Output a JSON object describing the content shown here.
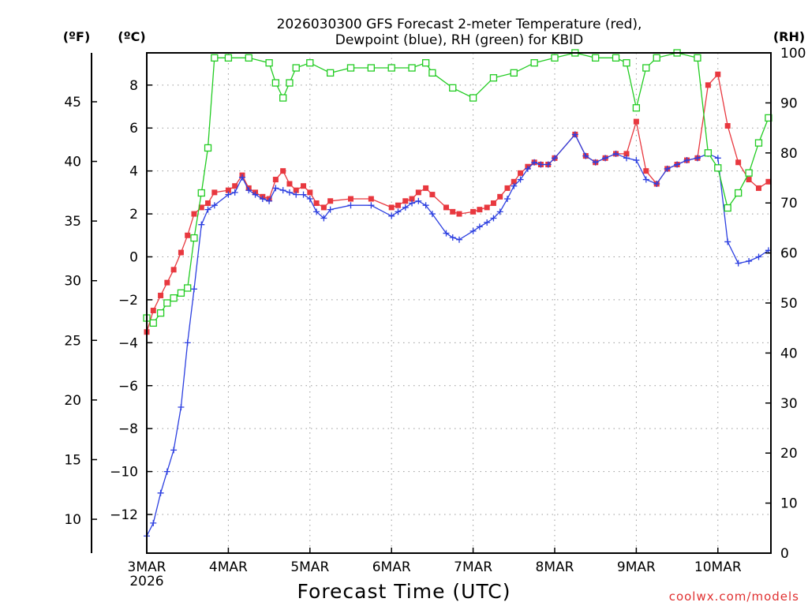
{
  "chart_data": {
    "type": "line",
    "title_line1": "2026030300 GFS Forecast 2-meter Temperature (red),",
    "title_line2": "Dewpoint (blue), RH (green) for KBID",
    "xlabel": "Forecast Time (UTC)",
    "credit": "coolwx.com/models",
    "units": {
      "fahrenheit": "(ºF)",
      "celsius": "(ºC)",
      "rh": "(RH)"
    },
    "x_range_days": [
      0,
      7.65
    ],
    "x_ticks": [
      {
        "day": 0,
        "label": "3MAR",
        "sub": "2026"
      },
      {
        "day": 1,
        "label": "4MAR"
      },
      {
        "day": 2,
        "label": "5MAR"
      },
      {
        "day": 3,
        "label": "6MAR"
      },
      {
        "day": 4,
        "label": "7MAR"
      },
      {
        "day": 5,
        "label": "8MAR"
      },
      {
        "day": 6,
        "label": "9MAR"
      },
      {
        "day": 7,
        "label": "10MAR"
      }
    ],
    "y_celsius": {
      "range": [
        -13.8,
        9.5
      ],
      "ticks": [
        -12,
        -10,
        -8,
        -6,
        -4,
        -2,
        0,
        2,
        4,
        6,
        8
      ]
    },
    "y_fahrenheit": {
      "ticks": [
        10,
        15,
        20,
        25,
        30,
        35,
        40,
        45
      ]
    },
    "y_rh": {
      "range": [
        0,
        100
      ],
      "ticks": [
        0,
        10,
        20,
        30,
        40,
        50,
        60,
        70,
        80,
        90,
        100
      ]
    },
    "colors": {
      "temperature": "#e8383f",
      "dewpoint": "#2c3fe0",
      "rh": "#22cc22",
      "grid": "#999999"
    },
    "series": [
      {
        "name": "Temperature (red)",
        "unit": "C",
        "marker": "square-filled",
        "days": [
          0,
          0.08,
          0.17,
          0.25,
          0.33,
          0.42,
          0.5,
          0.58,
          0.67,
          0.75,
          0.83,
          1,
          1.08,
          1.17,
          1.25,
          1.33,
          1.42,
          1.5,
          1.58,
          1.67,
          1.75,
          1.83,
          1.92,
          2,
          2.08,
          2.17,
          2.25,
          2.5,
          2.75,
          3,
          3.08,
          3.17,
          3.25,
          3.33,
          3.42,
          3.5,
          3.67,
          3.75,
          3.83,
          4,
          4.08,
          4.17,
          4.25,
          4.33,
          4.42,
          4.5,
          4.58,
          4.67,
          4.75,
          4.83,
          4.92,
          5,
          5.25,
          5.38,
          5.5,
          5.62,
          5.75,
          5.88,
          6,
          6.12,
          6.25,
          6.38,
          6.5,
          6.62,
          6.75,
          6.88,
          7,
          7.12,
          7.25,
          7.38,
          7.5,
          7.62
        ],
        "values": [
          -3.5,
          -2.5,
          -1.8,
          -1.2,
          -0.6,
          0.2,
          1.0,
          2.0,
          2.3,
          2.5,
          3.0,
          3.1,
          3.3,
          3.8,
          3.2,
          3.0,
          2.8,
          2.7,
          3.6,
          4.0,
          3.4,
          3.1,
          3.3,
          3.0,
          2.5,
          2.3,
          2.6,
          2.7,
          2.7,
          2.3,
          2.4,
          2.6,
          2.7,
          3.0,
          3.2,
          2.9,
          2.3,
          2.1,
          2.0,
          2.1,
          2.2,
          2.3,
          2.5,
          2.8,
          3.2,
          3.5,
          3.9,
          4.2,
          4.4,
          4.3,
          4.3,
          4.6,
          5.7,
          4.7,
          4.4,
          4.6,
          4.8,
          4.8,
          6.3,
          4.0,
          3.4,
          4.1,
          4.3,
          4.5,
          4.6,
          8.0,
          8.5,
          6.1,
          4.4,
          3.6,
          3.2,
          3.5
        ]
      },
      {
        "name": "Dewpoint (blue)",
        "unit": "C",
        "marker": "plus",
        "days": [
          0,
          0.08,
          0.17,
          0.25,
          0.33,
          0.42,
          0.5,
          0.58,
          0.67,
          0.75,
          0.83,
          1,
          1.08,
          1.17,
          1.25,
          1.33,
          1.42,
          1.5,
          1.58,
          1.67,
          1.75,
          1.83,
          1.92,
          2,
          2.08,
          2.17,
          2.25,
          2.5,
          2.75,
          3,
          3.08,
          3.17,
          3.25,
          3.33,
          3.42,
          3.5,
          3.67,
          3.75,
          3.83,
          4,
          4.08,
          4.17,
          4.25,
          4.33,
          4.42,
          4.5,
          4.58,
          4.67,
          4.75,
          4.83,
          4.92,
          5,
          5.25,
          5.38,
          5.5,
          5.62,
          5.75,
          5.88,
          6,
          6.12,
          6.25,
          6.38,
          6.5,
          6.62,
          6.75,
          6.88,
          7,
          7.12,
          7.25,
          7.38,
          7.5,
          7.62
        ],
        "values": [
          -13.0,
          -12.4,
          -11.0,
          -10.0,
          -9.0,
          -7.0,
          -4.0,
          -1.5,
          1.5,
          2.2,
          2.4,
          2.9,
          3.0,
          3.7,
          3.1,
          2.9,
          2.7,
          2.6,
          3.2,
          3.1,
          3.0,
          2.9,
          2.9,
          2.7,
          2.1,
          1.8,
          2.2,
          2.4,
          2.4,
          1.9,
          2.1,
          2.3,
          2.5,
          2.6,
          2.4,
          2.0,
          1.1,
          0.9,
          0.8,
          1.2,
          1.4,
          1.6,
          1.8,
          2.1,
          2.7,
          3.3,
          3.6,
          4.1,
          4.4,
          4.3,
          4.3,
          4.6,
          5.7,
          4.7,
          4.4,
          4.6,
          4.8,
          4.6,
          4.5,
          3.6,
          3.4,
          4.1,
          4.3,
          4.5,
          4.6,
          4.8,
          4.6,
          0.7,
          -0.3,
          -0.2,
          0.0,
          0.3
        ]
      },
      {
        "name": "RH (green)",
        "unit": "%",
        "marker": "square-open",
        "days": [
          0,
          0.08,
          0.17,
          0.25,
          0.33,
          0.42,
          0.5,
          0.58,
          0.67,
          0.75,
          0.83,
          1,
          1.25,
          1.5,
          1.58,
          1.67,
          1.75,
          1.83,
          2,
          2.25,
          2.5,
          2.75,
          3,
          3.25,
          3.42,
          3.5,
          3.75,
          4,
          4.25,
          4.5,
          4.75,
          5,
          5.25,
          5.5,
          5.75,
          5.88,
          6,
          6.12,
          6.25,
          6.5,
          6.75,
          6.88,
          7,
          7.12,
          7.25,
          7.38,
          7.5,
          7.62
        ],
        "values": [
          47,
          46,
          48,
          50,
          51,
          52,
          53,
          63,
          72,
          81,
          99,
          99,
          99,
          98,
          94,
          91,
          94,
          97,
          98,
          96,
          97,
          97,
          97,
          97,
          98,
          96,
          93,
          91,
          95,
          96,
          98,
          99,
          100,
          99,
          99,
          98,
          89,
          97,
          99,
          100,
          99,
          80,
          77,
          69,
          72,
          76,
          82,
          87
        ]
      }
    ]
  }
}
